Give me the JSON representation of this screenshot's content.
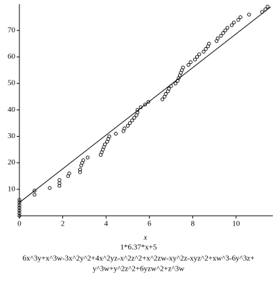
{
  "chart_data": {
    "type": "scatter",
    "xlabel": "x",
    "caption": [
      "1*6.37*x+5",
      "6x^3y+x^3w-3x^2y^2+4x^2yz-x^2z^2+x^2zw-xy^2z-xyz^2+xw^3-6y^3z+",
      "y^3w+y^2z^2+6yzw^2+z^3w"
    ],
    "xlim": [
      0,
      11.6
    ],
    "ylim": [
      0,
      79.4
    ],
    "xticks": [
      0,
      2,
      4,
      6,
      8,
      10
    ],
    "yticks": [
      10,
      20,
      30,
      40,
      50,
      60,
      70
    ],
    "series": [
      {
        "type": "scatter",
        "color": "#000000",
        "x": [
          0,
          0,
          0,
          0,
          0,
          0,
          0,
          0.7,
          0.7,
          1.4,
          1.85,
          1.85,
          1.85,
          2.25,
          2.3,
          2.8,
          2.8,
          2.85,
          2.9,
          2.95,
          3.15,
          3.75,
          3.8,
          3.85,
          3.9,
          3.95,
          4.05,
          4.1,
          4.15,
          4.45,
          4.8,
          4.85,
          5.0,
          5.1,
          5.2,
          5.3,
          5.4,
          5.45,
          5.45,
          5.6,
          5.8,
          5.95,
          6.6,
          6.7,
          6.75,
          6.85,
          6.9,
          7.0,
          7.2,
          7.3,
          7.35,
          7.4,
          7.45,
          7.5,
          7.55,
          7.8,
          7.9,
          8.1,
          8.2,
          8.3,
          8.5,
          8.6,
          8.7,
          8.75,
          9.1,
          9.15,
          9.3,
          9.4,
          9.5,
          9.6,
          9.8,
          9.9,
          10.1,
          10.2,
          10.6,
          11.2,
          11.35,
          11.45
        ],
        "values": [
          0,
          1,
          2,
          3,
          4,
          5,
          6,
          8,
          9.5,
          10.5,
          11.3,
          12.3,
          13.5,
          15,
          16,
          16.5,
          17.5,
          19,
          20,
          21,
          22,
          23,
          24,
          25,
          26,
          27,
          28,
          29,
          30,
          31,
          32,
          33,
          34,
          35,
          36,
          37,
          38,
          39,
          40,
          41,
          42,
          43,
          44,
          45,
          46,
          47,
          48,
          49,
          50,
          51,
          52,
          53,
          54,
          55,
          56,
          57,
          58,
          59,
          60,
          61,
          62,
          63,
          64,
          65,
          66,
          67,
          68,
          69,
          70,
          71,
          72,
          73,
          74,
          75,
          76,
          77,
          78,
          79
        ]
      },
      {
        "type": "line",
        "color": "#000000",
        "x": [
          0,
          11.6
        ],
        "values": [
          5,
          78.9
        ]
      }
    ]
  }
}
